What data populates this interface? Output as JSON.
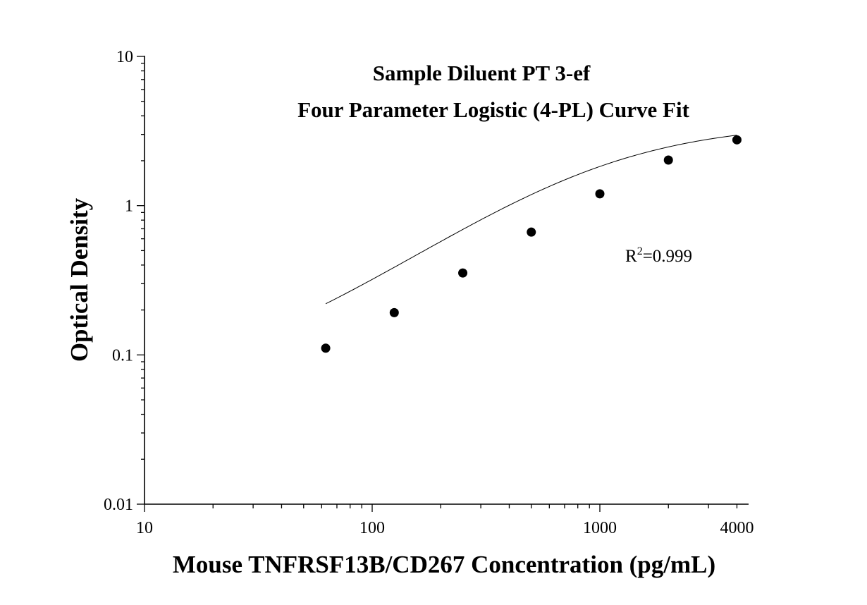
{
  "chart_data": {
    "type": "scatter",
    "title": [
      "Sample Diluent PT 3-ef",
      "Four Parameter Logistic (4-PL) Curve Fit"
    ],
    "xlabel": "Mouse TNFRSF13B/CD267 Concentration (pg/mL)",
    "ylabel": "Optical Density",
    "x_scale": "log",
    "y_scale": "log",
    "xlim": [
      10,
      4000
    ],
    "ylim": [
      0.01,
      10
    ],
    "x_ticks": [
      {
        "value": 10,
        "label": "10"
      },
      {
        "value": 100,
        "label": "100"
      },
      {
        "value": 1000,
        "label": "1000"
      },
      {
        "value": 4000,
        "label": "4000"
      }
    ],
    "y_ticks": [
      {
        "value": 0.01,
        "label": "0.01"
      },
      {
        "value": 0.1,
        "label": "0.1"
      },
      {
        "value": 1,
        "label": "1"
      },
      {
        "value": 10,
        "label": "10"
      }
    ],
    "grid": false,
    "series": [
      {
        "x": [
          62.5,
          125,
          250,
          500,
          1000,
          2000,
          4000
        ],
        "y": [
          0.111,
          0.192,
          0.354,
          0.665,
          1.2,
          2.02,
          2.76
        ]
      }
    ],
    "fit": {
      "type": "4-PL",
      "x_range": [
        62.5,
        4000
      ],
      "bottom": 0.06,
      "top": 3.6,
      "ec50": 1000,
      "hill": 1.1
    },
    "annotation": {
      "base": "R",
      "superscript": "2",
      "text": "=0.999"
    }
  }
}
